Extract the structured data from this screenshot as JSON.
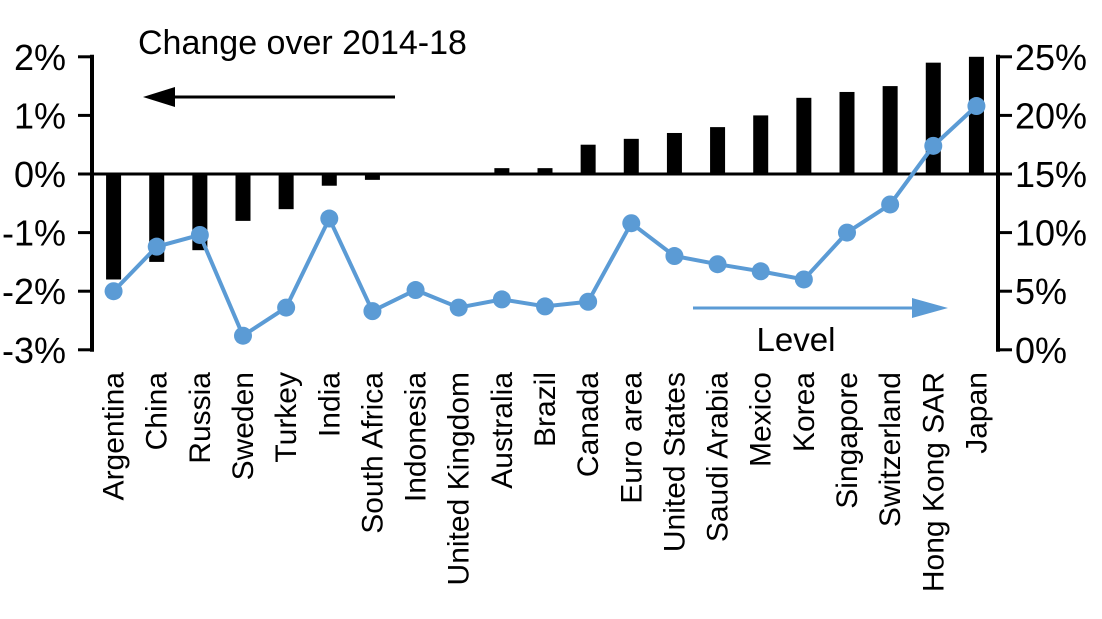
{
  "chart_data": {
    "type": "bar+line",
    "categories": [
      "Argentina",
      "China",
      "Russia",
      "Sweden",
      "Turkey",
      "India",
      "South Africa",
      "Indonesia",
      "United Kingdom",
      "Australia",
      "Brazil",
      "Canada",
      "Euro area",
      "United States",
      "Saudi Arabia",
      "Mexico",
      "Korea",
      "Singapore",
      "Switzerland",
      "Hong Kong SAR",
      "Japan"
    ],
    "series": [
      {
        "name": "Change over 2014-18",
        "type": "bar",
        "axis": "left",
        "color": "#000000",
        "values": [
          -1.8,
          -1.5,
          -1.3,
          -0.8,
          -0.6,
          -0.2,
          -0.1,
          0.0,
          0.0,
          0.1,
          0.1,
          0.5,
          0.6,
          0.7,
          0.8,
          1.0,
          1.3,
          1.4,
          1.5,
          1.9,
          2.0
        ]
      },
      {
        "name": "Level",
        "type": "line",
        "axis": "right",
        "color": "#5B9BD5",
        "values": [
          5.0,
          8.8,
          9.8,
          1.2,
          3.6,
          11.2,
          3.3,
          5.1,
          3.6,
          4.3,
          3.7,
          4.1,
          10.8,
          8.0,
          7.3,
          6.7,
          6.0,
          10.0,
          12.4,
          17.4,
          20.8
        ]
      }
    ],
    "left_axis": {
      "min": -3,
      "max": 2,
      "unit": "%",
      "tick_labels": [
        "2%",
        "1%",
        "0%",
        "-1%",
        "-2%",
        "-3%"
      ]
    },
    "right_axis": {
      "min": 0,
      "max": 25,
      "unit": "%",
      "tick_labels": [
        "25%",
        "20%",
        "15%",
        "10%",
        "5%",
        "0%"
      ]
    },
    "grid": false,
    "legend_position": "in-plot annotations with arrows",
    "bars_annotation": "Change over 2014-18",
    "line_annotation": "Level",
    "colors": {
      "bar": "#000000",
      "line": "#5B9BD5",
      "axis": "#000000",
      "background": "#ffffff"
    }
  }
}
